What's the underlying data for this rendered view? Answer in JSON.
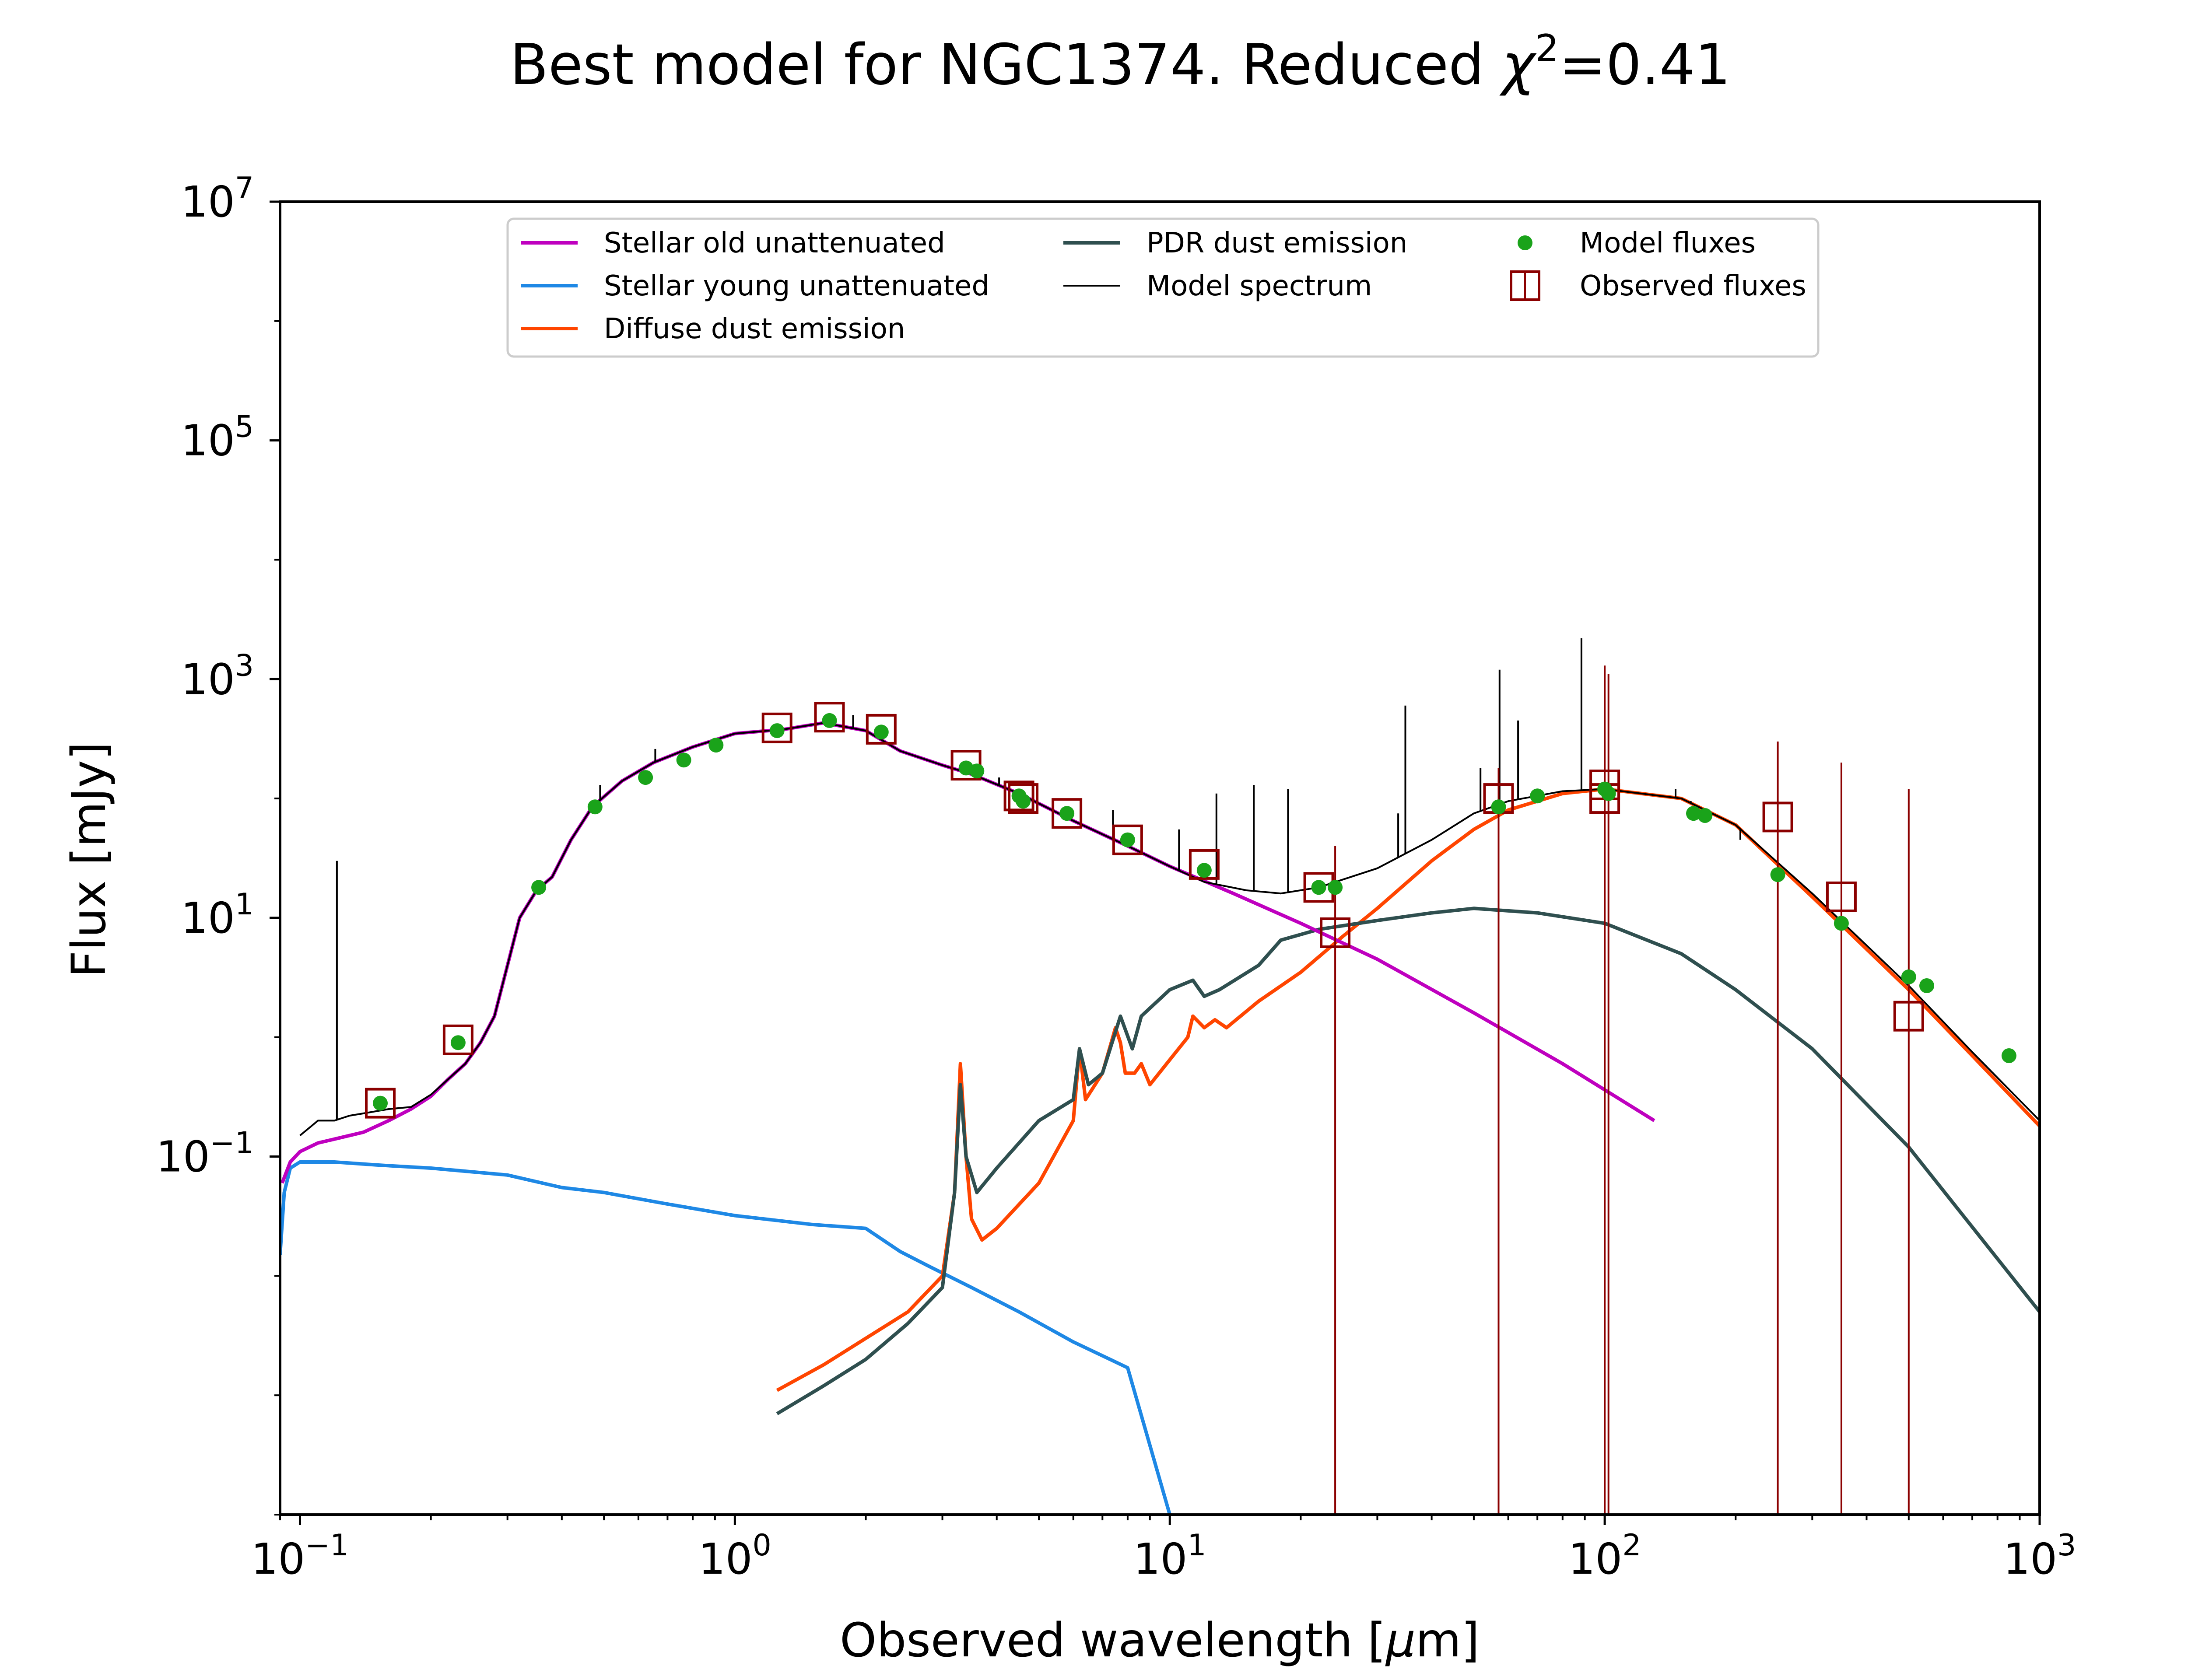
{
  "chart_data": {
    "type": "line",
    "title_parts": {
      "main": "Best model for NGC1374. Reduced ",
      "chi": "χ",
      "sup": "2",
      "tail": "=0.41"
    },
    "xlabel": "Observed wavelength [",
    "xlabel_mu": "μ",
    "xlabel_tail": "m]",
    "ylabel": "Flux [mJy]",
    "xscale": "log",
    "yscale": "log",
    "xlim": [
      0.09,
      1000
    ],
    "ylim": [
      0.0001,
      10000000
    ],
    "grid": false,
    "legend_position": "top-center",
    "x_ticks": [
      {
        "base": "10",
        "exp": "−1",
        "value": 0.1
      },
      {
        "base": "10",
        "exp": "0",
        "value": 1
      },
      {
        "base": "10",
        "exp": "1",
        "value": 10
      },
      {
        "base": "10",
        "exp": "2",
        "value": 100
      },
      {
        "base": "10",
        "exp": "3",
        "value": 1000
      }
    ],
    "y_ticks": [
      {
        "base": "10",
        "exp": "−1",
        "value": 0.1
      },
      {
        "base": "10",
        "exp": "1",
        "value": 10
      },
      {
        "base": "10",
        "exp": "3",
        "value": 1000
      },
      {
        "base": "10",
        "exp": "5",
        "value": 100000
      },
      {
        "base": "10",
        "exp": "7",
        "value": 10000000
      }
    ],
    "series": [
      {
        "name": "Stellar old unattenuated",
        "color": "#bf00bf",
        "kind": "line",
        "x": [
          0.091,
          0.095,
          0.1,
          0.11,
          0.12,
          0.14,
          0.16,
          0.18,
          0.2,
          0.22,
          0.24,
          0.26,
          0.28,
          0.3,
          0.32,
          0.35,
          0.38,
          0.42,
          0.47,
          0.55,
          0.65,
          0.8,
          1.0,
          1.3,
          1.6,
          2.0,
          2.4,
          3.0,
          3.5,
          4.5,
          6,
          8,
          10,
          14,
          20,
          30,
          50,
          80,
          130
        ],
        "y": [
          0.06,
          0.09,
          0.11,
          0.13,
          0.14,
          0.16,
          0.2,
          0.25,
          0.32,
          0.45,
          0.6,
          0.9,
          1.5,
          4,
          10,
          17,
          22,
          45,
          85,
          140,
          200,
          270,
          350,
          380,
          430,
          370,
          250,
          190,
          160,
          110,
          65,
          40,
          27,
          16,
          9,
          4.5,
          1.6,
          0.6,
          0.2
        ]
      },
      {
        "name": "Stellar young unattenuated",
        "color": "#1e88e5",
        "kind": "line",
        "x": [
          0.09,
          0.092,
          0.095,
          0.1,
          0.12,
          0.15,
          0.2,
          0.3,
          0.4,
          0.5,
          0.7,
          1.0,
          1.5,
          2.0,
          2.4,
          2.8,
          3.5,
          4.5,
          6,
          8,
          10
        ],
        "y": [
          0.015,
          0.05,
          0.08,
          0.09,
          0.09,
          0.085,
          0.08,
          0.07,
          0.055,
          0.05,
          0.04,
          0.032,
          0.027,
          0.025,
          0.016,
          0.012,
          0.008,
          0.005,
          0.0028,
          0.0017,
          0.0001
        ]
      },
      {
        "name": "Diffuse dust emission",
        "color": "#ff4500",
        "kind": "line",
        "x": [
          1.25,
          1.6,
          2.0,
          2.5,
          3.0,
          3.2,
          3.3,
          3.4,
          3.5,
          3.7,
          4.0,
          5.0,
          6.0,
          6.2,
          6.4,
          7.0,
          7.5,
          7.7,
          7.9,
          8.3,
          8.6,
          9.0,
          11,
          11.3,
          12,
          12.7,
          13.5,
          16,
          20,
          25,
          30,
          40,
          50,
          60,
          80,
          100,
          150,
          200,
          300,
          500,
          700,
          1000
        ],
        "y": [
          0.0011,
          0.0018,
          0.003,
          0.005,
          0.01,
          0.05,
          0.6,
          0.1,
          0.03,
          0.02,
          0.025,
          0.06,
          0.2,
          0.8,
          0.3,
          0.5,
          1.2,
          0.9,
          0.5,
          0.5,
          0.6,
          0.4,
          1.0,
          1.5,
          1.2,
          1.4,
          1.2,
          2.0,
          3.5,
          7.0,
          12,
          30,
          55,
          80,
          110,
          120,
          100,
          60,
          15,
          2.5,
          0.7,
          0.18
        ]
      },
      {
        "name": "PDR dust emission",
        "color": "#2f4f4f",
        "kind": "line",
        "x": [
          1.25,
          1.6,
          2.0,
          2.5,
          3.0,
          3.2,
          3.3,
          3.4,
          3.6,
          4.0,
          5.0,
          6.0,
          6.2,
          6.5,
          7.0,
          7.7,
          8.2,
          8.6,
          10,
          11.3,
          12,
          13,
          16,
          18,
          22,
          30,
          40,
          50,
          70,
          100,
          150,
          200,
          300,
          500,
          1000
        ],
        "y": [
          0.0007,
          0.0012,
          0.002,
          0.004,
          0.008,
          0.05,
          0.4,
          0.1,
          0.05,
          0.08,
          0.2,
          0.3,
          0.8,
          0.4,
          0.5,
          1.5,
          0.8,
          1.5,
          2.5,
          3.0,
          2.2,
          2.5,
          4.0,
          6.5,
          8.0,
          9.5,
          11,
          12,
          11,
          9,
          5,
          2.5,
          0.8,
          0.12,
          0.005
        ]
      },
      {
        "name": "Model spectrum",
        "color": "#000000",
        "kind": "line",
        "x": [
          0.1,
          0.11,
          0.12,
          0.13,
          0.14,
          0.16,
          0.18,
          0.2,
          0.22,
          0.24,
          0.26,
          0.28,
          0.3,
          0.32,
          0.35,
          0.38,
          0.42,
          0.47,
          0.55,
          0.65,
          0.8,
          1.0,
          1.3,
          1.6,
          2.0,
          2.4,
          3.0,
          3.5,
          4.5,
          6,
          8,
          10,
          12,
          15,
          18,
          22,
          30,
          40,
          50,
          60,
          80,
          100,
          150,
          200,
          300,
          500,
          700,
          1000
        ],
        "y": [
          0.15,
          0.2,
          0.2,
          0.22,
          0.23,
          0.25,
          0.26,
          0.33,
          0.45,
          0.6,
          0.9,
          1.5,
          4,
          10,
          17,
          22,
          45,
          85,
          140,
          200,
          270,
          350,
          380,
          430,
          370,
          250,
          190,
          160,
          110,
          65,
          40,
          27,
          20,
          17,
          16,
          18,
          26,
          45,
          75,
          95,
          115,
          120,
          100,
          60,
          16,
          2.7,
          0.75,
          0.2
        ]
      },
      {
        "name": "Model fluxes",
        "color": "#1aa31a",
        "kind": "scatter",
        "x": [
          0.153,
          0.231,
          0.354,
          0.477,
          0.623,
          0.763,
          0.905,
          1.25,
          1.65,
          2.17,
          3.4,
          3.6,
          4.5,
          4.6,
          5.8,
          8.0,
          12,
          22,
          24,
          57,
          70,
          100,
          102,
          160,
          170,
          250,
          350,
          500,
          550,
          850
        ],
        "y": [
          0.28,
          0.9,
          18,
          85,
          150,
          210,
          280,
          370,
          450,
          360,
          180,
          170,
          105,
          95,
          75,
          45,
          25,
          18,
          18,
          85,
          105,
          120,
          110,
          75,
          72,
          23,
          9,
          3.2,
          2.7,
          0.7
        ]
      },
      {
        "name": "Observed fluxes",
        "color": "#8b0000",
        "kind": "squares",
        "x": [
          0.153,
          0.231,
          1.25,
          1.65,
          2.17,
          3.4,
          4.5,
          4.6,
          5.8,
          8.0,
          12,
          22,
          24,
          57,
          100,
          100,
          250,
          350,
          500
        ],
        "y": [
          0.28,
          0.95,
          390,
          480,
          380,
          190,
          105,
          100,
          75,
          45,
          28,
          18,
          7.5,
          100,
          130,
          100,
          70,
          15,
          1.5
        ],
        "err_bars": [
          {
            "x": 24,
            "y_top": 40
          },
          {
            "x": 57,
            "y_top": 180
          },
          {
            "x": 100,
            "y_top": 1300
          },
          {
            "x": 102,
            "y_top": 1100
          },
          {
            "x": 250,
            "y_top": 300
          },
          {
            "x": 350,
            "y_top": 200
          },
          {
            "x": 500,
            "y_top": 120
          }
        ]
      }
    ],
    "emission_lines": [
      {
        "x": 0.1216,
        "y_top": 30
      },
      {
        "x": 0.49,
        "y_top": 130
      },
      {
        "x": 0.656,
        "y_top": 260
      },
      {
        "x": 1.87,
        "y_top": 500
      },
      {
        "x": 4.05,
        "y_top": 150
      },
      {
        "x": 7.4,
        "y_top": 80
      },
      {
        "x": 10.5,
        "y_top": 55
      },
      {
        "x": 12.8,
        "y_top": 110
      },
      {
        "x": 15.6,
        "y_top": 130
      },
      {
        "x": 18.7,
        "y_top": 120
      },
      {
        "x": 33.5,
        "y_top": 75
      },
      {
        "x": 34.8,
        "y_top": 600
      },
      {
        "x": 51.8,
        "y_top": 180
      },
      {
        "x": 57.3,
        "y_top": 1200
      },
      {
        "x": 63.2,
        "y_top": 450
      },
      {
        "x": 88.4,
        "y_top": 2200
      },
      {
        "x": 145.5,
        "y_top": 120
      },
      {
        "x": 157.7,
        "y_top": 95
      },
      {
        "x": 205,
        "y_top": 45
      }
    ],
    "legend": {
      "columns": [
        [
          "Stellar old unattenuated",
          "Stellar young unattenuated",
          "Diffuse dust emission"
        ],
        [
          "PDR dust emission",
          "Model spectrum"
        ],
        [
          "Model fluxes",
          "Observed fluxes"
        ]
      ]
    }
  }
}
